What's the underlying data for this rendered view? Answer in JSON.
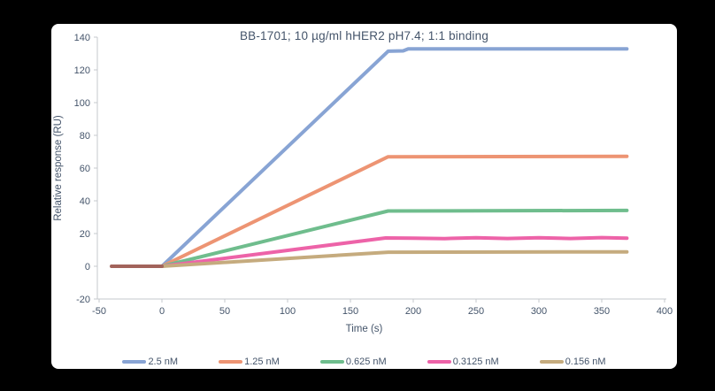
{
  "window": {
    "background_color": "#000000",
    "panel_color": "#ffffff"
  },
  "chart_data": {
    "type": "line",
    "title": "BB-1701; 10 µg/ml hHER2 pH7.4; 1:1 binding",
    "xlabel": "Time (s)",
    "ylabel": "Relative response (RU)",
    "xlim": [
      -50,
      400
    ],
    "ylim": [
      -20,
      140
    ],
    "xticks": [
      -50,
      0,
      50,
      100,
      150,
      200,
      250,
      300,
      350,
      400
    ],
    "yticks": [
      -20,
      0,
      20,
      40,
      60,
      80,
      100,
      120,
      140
    ],
    "grid": false,
    "legend_position": "bottom",
    "text_color": "#44546A",
    "axis_color": "#C6C9CC",
    "baseline_overlap_color": "#A2635B",
    "line_width": 4,
    "series": [
      {
        "name": "2.5 nM",
        "color": "#88A4D4",
        "points": [
          [
            -40,
            0
          ],
          [
            0,
            0
          ],
          [
            180,
            131.4
          ],
          [
            192,
            131.6
          ],
          [
            196,
            132.8
          ],
          [
            370,
            132.8
          ]
        ]
      },
      {
        "name": "1.25 nM",
        "color": "#ED9473",
        "points": [
          [
            -40,
            0
          ],
          [
            0,
            0
          ],
          [
            180,
            66.9
          ],
          [
            370,
            67.2
          ]
        ]
      },
      {
        "name": "0.625 nM",
        "color": "#6FBD8D",
        "points": [
          [
            -40,
            0
          ],
          [
            0,
            0
          ],
          [
            180,
            33.8
          ],
          [
            370,
            34.1
          ]
        ]
      },
      {
        "name": "0.3125 nM",
        "color": "#ED63A8",
        "points": [
          [
            -40,
            0
          ],
          [
            0,
            0
          ],
          [
            178,
            17.3
          ],
          [
            200,
            17.2
          ],
          [
            225,
            16.9
          ],
          [
            250,
            17.4
          ],
          [
            275,
            17.0
          ],
          [
            300,
            17.4
          ],
          [
            325,
            17.0
          ],
          [
            350,
            17.5
          ],
          [
            370,
            17.2
          ]
        ]
      },
      {
        "name": "0.156 nM",
        "color": "#C5AB7E",
        "points": [
          [
            -40,
            0
          ],
          [
            0,
            0
          ],
          [
            180,
            8.6
          ],
          [
            370,
            8.8
          ]
        ]
      }
    ]
  }
}
